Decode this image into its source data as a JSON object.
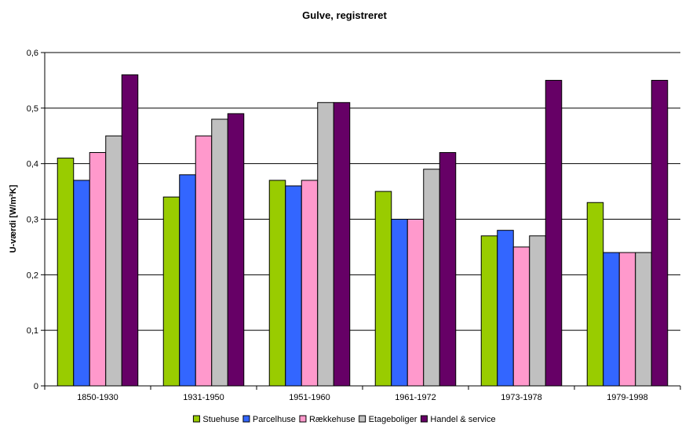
{
  "chart_data": {
    "type": "bar",
    "title": "Gulve, registreret",
    "xlabel": "",
    "ylabel": "U-værdi [W/m²K]",
    "ylim": [
      0,
      0.6
    ],
    "yticks": [
      "0",
      "0,1",
      "0,2",
      "0,3",
      "0,4",
      "0,5",
      "0,6"
    ],
    "ytick_values": [
      0,
      0.1,
      0.2,
      0.3,
      0.4,
      0.5,
      0.6
    ],
    "grid": true,
    "legend_position": "bottom",
    "categories": [
      "1850-1930",
      "1931-1950",
      "1951-1960",
      "1961-1972",
      "1973-1978",
      "1979-1998"
    ],
    "series": [
      {
        "name": "Stuehuse",
        "color": "#99CC00",
        "values": [
          0.41,
          0.34,
          0.37,
          0.35,
          0.27,
          0.33
        ]
      },
      {
        "name": "Parcelhuse",
        "color": "#3366FF",
        "values": [
          0.37,
          0.38,
          0.36,
          0.3,
          0.28,
          0.24
        ]
      },
      {
        "name": "Rækkehuse",
        "color": "#FF99CC",
        "values": [
          0.42,
          0.45,
          0.37,
          0.3,
          0.25,
          0.24
        ]
      },
      {
        "name": "Etageboliger",
        "color": "#C0C0C0",
        "values": [
          0.45,
          0.48,
          0.51,
          0.39,
          0.27,
          0.24
        ]
      },
      {
        "name": "Handel & service",
        "color": "#660066",
        "values": [
          0.56,
          0.49,
          0.51,
          0.42,
          0.55,
          0.55
        ]
      }
    ]
  }
}
